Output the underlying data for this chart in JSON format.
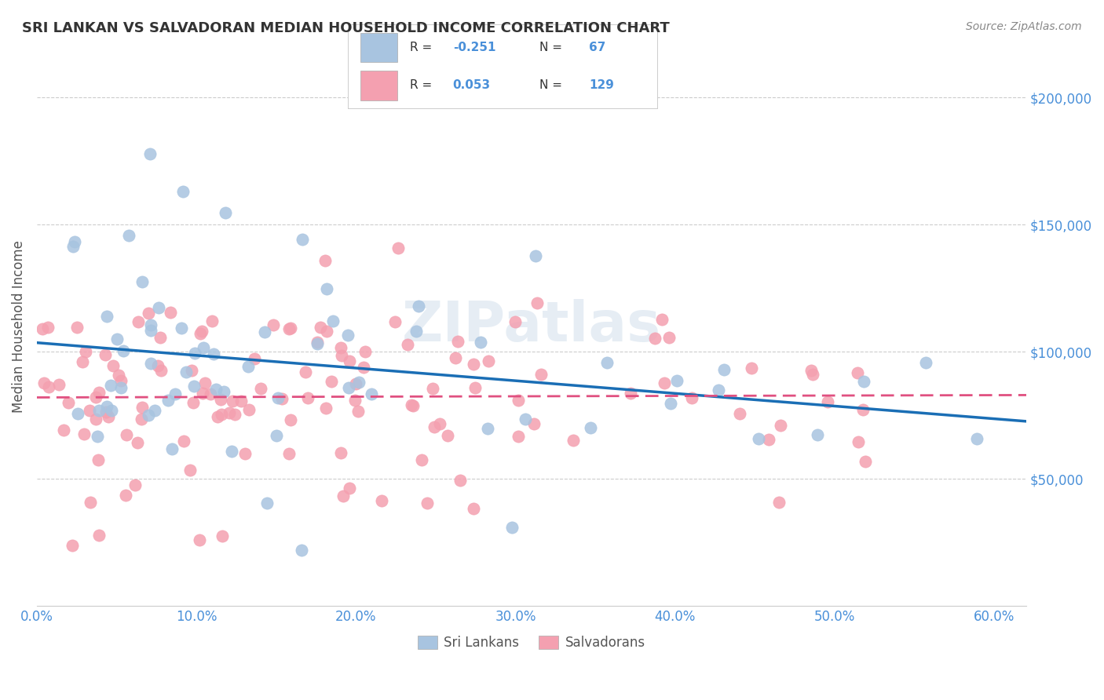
{
  "title": "SRI LANKAN VS SALVADORAN MEDIAN HOUSEHOLD INCOME CORRELATION CHART",
  "source": "Source: ZipAtlas.com",
  "ylabel": "Median Household Income",
  "legend_sri_label": "Sri Lankans",
  "legend_sal_label": "Salvadorans",
  "sri_color": "#a8c4e0",
  "sal_color": "#f4a0b0",
  "sri_line_color": "#1a6eb5",
  "sal_line_color": "#e05080",
  "watermark": "ZIPatlas",
  "sri_R": -0.251,
  "sal_R": 0.053,
  "xmin": 0.0,
  "xmax": 0.62,
  "ymin": 0,
  "ymax": 220000,
  "background_color": "#ffffff",
  "grid_color": "#cccccc",
  "title_color": "#333333",
  "tick_color": "#4a90d9"
}
